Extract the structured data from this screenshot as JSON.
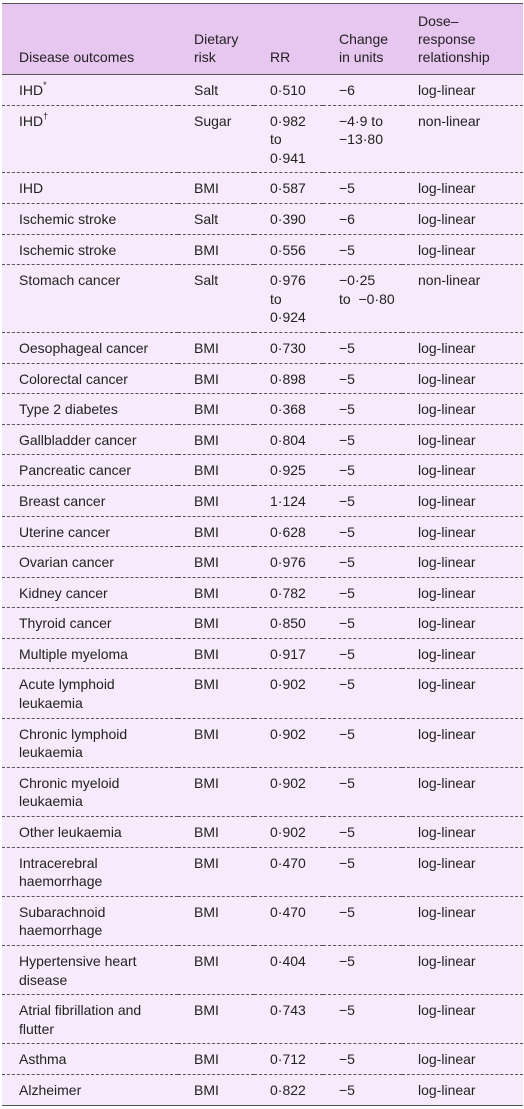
{
  "headers": [
    "Disease outcomes",
    "Dietary\nrisk",
    "RR",
    "Change\nin units",
    "Dose–\nresponse\nrelationship"
  ],
  "rows": [
    {
      "disease": "IHD",
      "sup": "*",
      "risk": "Salt",
      "rr": [
        "0·510"
      ],
      "change": [
        "−6"
      ],
      "dose": "log-linear"
    },
    {
      "disease": "IHD",
      "sup": "†",
      "risk": "Sugar",
      "rr": [
        "0·982",
        "to",
        "0·941"
      ],
      "change": [
        "−4·9 to",
        "−13·80"
      ],
      "dose": "non-linear"
    },
    {
      "disease": "IHD",
      "sup": "",
      "risk": "BMI",
      "rr": [
        "0·587"
      ],
      "change": [
        "−5"
      ],
      "dose": "log-linear"
    },
    {
      "disease": "Ischemic stroke",
      "sup": "",
      "risk": "Salt",
      "rr": [
        "0·390"
      ],
      "change": [
        "−6"
      ],
      "dose": "log-linear"
    },
    {
      "disease": "Ischemic stroke",
      "sup": "",
      "risk": "BMI",
      "rr": [
        "0·556"
      ],
      "change": [
        "−5"
      ],
      "dose": "log-linear"
    },
    {
      "disease": "Stomach cancer",
      "sup": "",
      "risk": "Salt",
      "rr": [
        "0·976",
        "to",
        "0·924"
      ],
      "change": [
        "−0·25",
        "to  −0·80"
      ],
      "dose": "non-linear"
    },
    {
      "disease": "Oesophageal cancer",
      "sup": "",
      "risk": "BMI",
      "rr": [
        "0·730"
      ],
      "change": [
        "−5"
      ],
      "dose": "log-linear"
    },
    {
      "disease": "Colorectal cancer",
      "sup": "",
      "risk": "BMI",
      "rr": [
        "0·898"
      ],
      "change": [
        "−5"
      ],
      "dose": "log-linear"
    },
    {
      "disease": "Type 2 diabetes",
      "sup": "",
      "risk": "BMI",
      "rr": [
        "0·368"
      ],
      "change": [
        "−5"
      ],
      "dose": "log-linear"
    },
    {
      "disease": "Gallbladder cancer",
      "sup": "",
      "risk": "BMI",
      "rr": [
        "0·804"
      ],
      "change": [
        "−5"
      ],
      "dose": "log-linear"
    },
    {
      "disease": "Pancreatic cancer",
      "sup": "",
      "risk": "BMI",
      "rr": [
        "0·925"
      ],
      "change": [
        "−5"
      ],
      "dose": "log-linear"
    },
    {
      "disease": "Breast cancer",
      "sup": "",
      "risk": "BMI",
      "rr": [
        "1·124"
      ],
      "change": [
        "−5"
      ],
      "dose": "log-linear"
    },
    {
      "disease": "Uterine cancer",
      "sup": "",
      "risk": "BMI",
      "rr": [
        "0·628"
      ],
      "change": [
        "−5"
      ],
      "dose": "log-linear"
    },
    {
      "disease": "Ovarian cancer",
      "sup": "",
      "risk": "BMI",
      "rr": [
        "0·976"
      ],
      "change": [
        "−5"
      ],
      "dose": "log-linear"
    },
    {
      "disease": "Kidney cancer",
      "sup": "",
      "risk": "BMI",
      "rr": [
        "0·782"
      ],
      "change": [
        "−5"
      ],
      "dose": "log-linear"
    },
    {
      "disease": "Thyroid cancer",
      "sup": "",
      "risk": "BMI",
      "rr": [
        "0·850"
      ],
      "change": [
        "−5"
      ],
      "dose": "log-linear"
    },
    {
      "disease": "Multiple myeloma",
      "sup": "",
      "risk": "BMI",
      "rr": [
        "0·917"
      ],
      "change": [
        "−5"
      ],
      "dose": "log-linear"
    },
    {
      "disease": "Acute lymphoid leukaemia",
      "sup": "",
      "risk": "BMI",
      "rr": [
        "0·902"
      ],
      "change": [
        "−5"
      ],
      "dose": "log-linear"
    },
    {
      "disease": "Chronic lymphoid leukaemia",
      "sup": "",
      "risk": "BMI",
      "rr": [
        "0·902"
      ],
      "change": [
        "−5"
      ],
      "dose": "log-linear"
    },
    {
      "disease": "Chronic myeloid leukaemia",
      "sup": "",
      "risk": "BMI",
      "rr": [
        "0·902"
      ],
      "change": [
        "−5"
      ],
      "dose": "log-linear"
    },
    {
      "disease": "Other leukaemia",
      "sup": "",
      "risk": "BMI",
      "rr": [
        "0·902"
      ],
      "change": [
        "−5"
      ],
      "dose": "log-linear"
    },
    {
      "disease": "Intracerebral haemorrhage",
      "sup": "",
      "risk": "BMI",
      "rr": [
        "0·470"
      ],
      "change": [
        "−5"
      ],
      "dose": "log-linear"
    },
    {
      "disease": "Subarachnoid haemorrhage",
      "sup": "",
      "risk": "BMI",
      "rr": [
        "0·470"
      ],
      "change": [
        "−5"
      ],
      "dose": "log-linear"
    },
    {
      "disease": "Hypertensive heart disease",
      "sup": "",
      "risk": "BMI",
      "rr": [
        "0·404"
      ],
      "change": [
        "−5"
      ],
      "dose": "log-linear"
    },
    {
      "disease": "Atrial fibrillation and flutter",
      "sup": "",
      "risk": "BMI",
      "rr": [
        "0·743"
      ],
      "change": [
        "−5"
      ],
      "dose": "log-linear"
    },
    {
      "disease": "Asthma",
      "sup": "",
      "risk": "BMI",
      "rr": [
        "0·712"
      ],
      "change": [
        "−5"
      ],
      "dose": "log-linear"
    },
    {
      "disease": "Alzheimer",
      "sup": "",
      "risk": "BMI",
      "rr": [
        "0·822"
      ],
      "change": [
        "−5"
      ],
      "dose": "log-linear"
    }
  ]
}
